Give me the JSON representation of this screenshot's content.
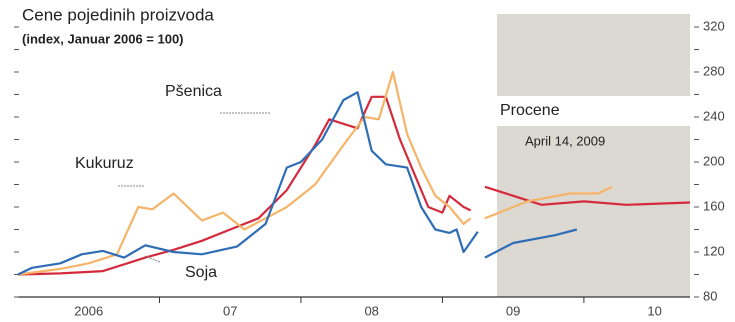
{
  "chart_data": {
    "type": "line",
    "title": "Cene pojedinih proizvoda",
    "subtitle": "(index, Januar  2006 = 100)",
    "annotations": [
      "Procene",
      "April 14, 2009"
    ],
    "xlim": [
      2006,
      2010.75
    ],
    "xticks": [
      {
        "value": 2006.5,
        "label": "2006"
      },
      {
        "value": 2007.5,
        "label": "07"
      },
      {
        "value": 2008.5,
        "label": "08"
      },
      {
        "value": 2009.5,
        "label": "09"
      },
      {
        "value": 2010.5,
        "label": "10"
      }
    ],
    "ylim": [
      80,
      320
    ],
    "yticks": [
      80,
      120,
      160,
      200,
      240,
      280,
      320
    ],
    "series": [
      {
        "name": "Pšenica",
        "color": "#d42a3c",
        "x": [
          2006.0,
          2006.3,
          2006.6,
          2006.9,
          2007.1,
          2007.3,
          2007.5,
          2007.7,
          2007.9,
          2008.1,
          2008.2,
          2008.4,
          2008.5,
          2008.6,
          2008.7,
          2008.8,
          2008.9,
          2009.0,
          2009.05,
          2009.15,
          2009.2,
          2009.27,
          2009.3,
          2009.5,
          2009.7,
          2010.0,
          2010.3,
          2010.75
        ],
        "values": [
          100,
          101,
          103,
          115,
          122,
          130,
          140,
          150,
          175,
          215,
          238,
          230,
          258,
          258,
          220,
          190,
          160,
          155,
          170,
          160,
          157,
          null,
          178,
          170,
          162,
          165,
          162,
          164
        ]
      },
      {
        "name": "Kukuruz",
        "color": "#f6b468",
        "x": [
          2006.0,
          2006.3,
          2006.5,
          2006.7,
          2006.85,
          2006.95,
          2007.1,
          2007.3,
          2007.45,
          2007.6,
          2007.75,
          2007.9,
          2008.1,
          2008.3,
          2008.45,
          2008.55,
          2008.65,
          2008.75,
          2008.85,
          2008.95,
          2009.05,
          2009.15,
          2009.2,
          2009.27,
          2009.3,
          2009.6,
          2009.9,
          2010.1,
          2010.2
        ],
        "values": [
          100,
          105,
          110,
          118,
          160,
          158,
          172,
          148,
          155,
          140,
          150,
          160,
          180,
          215,
          240,
          238,
          280,
          225,
          195,
          170,
          160,
          145,
          150,
          null,
          150,
          165,
          172,
          172,
          178
        ]
      },
      {
        "name": "Soja",
        "color": "#2f6db5",
        "x": [
          2006.0,
          2006.1,
          2006.3,
          2006.45,
          2006.6,
          2006.75,
          2006.9,
          2007.1,
          2007.3,
          2007.55,
          2007.75,
          2007.9,
          2008.0,
          2008.15,
          2008.3,
          2008.4,
          2008.5,
          2008.6,
          2008.75,
          2008.85,
          2008.95,
          2009.05,
          2009.1,
          2009.15,
          2009.25,
          2009.27,
          2009.3,
          2009.5,
          2009.8,
          2009.95
        ],
        "values": [
          100,
          106,
          110,
          118,
          121,
          115,
          126,
          120,
          118,
          125,
          145,
          195,
          200,
          220,
          255,
          262,
          210,
          198,
          195,
          160,
          140,
          137,
          140,
          120,
          138,
          null,
          115,
          128,
          135,
          140
        ]
      }
    ]
  }
}
